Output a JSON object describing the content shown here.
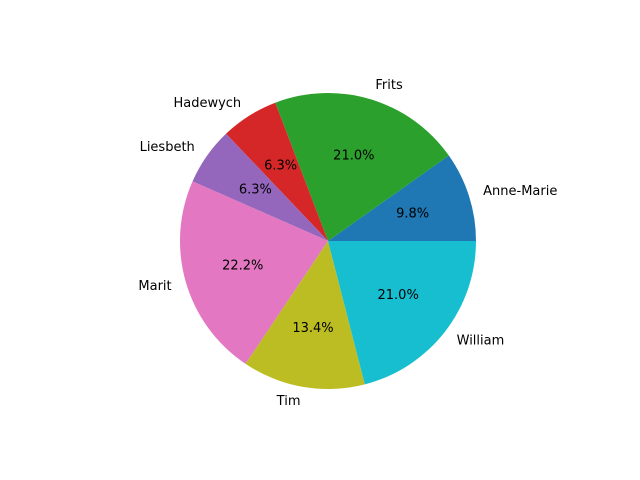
{
  "chart_data": {
    "type": "pie",
    "title": "",
    "labels": [
      "Anne-Marie",
      "Frits",
      "Hadewych",
      "Liesbeth",
      "Marit",
      "Tim",
      "William"
    ],
    "values": [
      9.8,
      21.0,
      6.3,
      6.3,
      22.2,
      13.4,
      21.0
    ],
    "percent_labels": [
      "9.8%",
      "21.0%",
      "6.3%",
      "6.3%",
      "22.2%",
      "13.4%",
      "21.0%"
    ],
    "colors": [
      "#1f77b4",
      "#2ca02c",
      "#d62728",
      "#9467bd",
      "#e377c2",
      "#bcbd22",
      "#17becf"
    ],
    "start_angle_deg": 0,
    "direction": "counterclockwise",
    "legend": "none"
  }
}
